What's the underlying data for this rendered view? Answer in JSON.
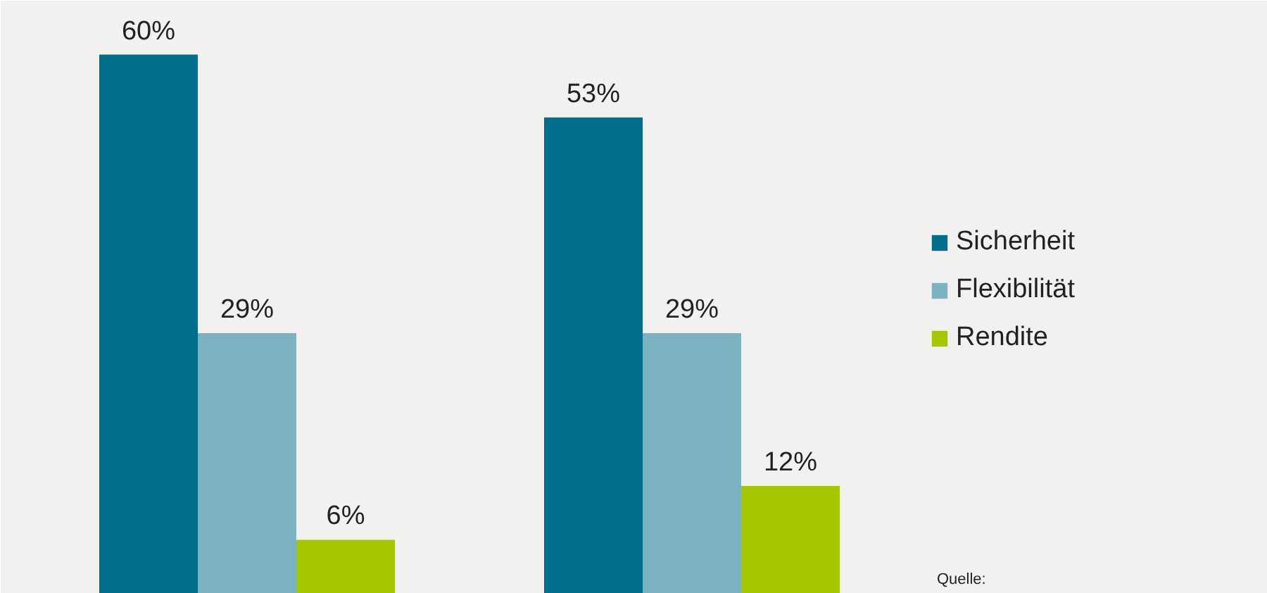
{
  "chart_data": {
    "type": "bar",
    "categories": [
      null,
      null
    ],
    "series": [
      {
        "name": "Sicherheit",
        "color": "#006d8a",
        "values": [
          60,
          53
        ],
        "value_labels": [
          "60%",
          "53%"
        ]
      },
      {
        "name": "Flexibilität",
        "color": "#7bb3c3",
        "values": [
          29,
          29
        ],
        "value_labels": [
          "29%",
          "29%"
        ]
      },
      {
        "name": "Rendite",
        "color": "#a6c700",
        "values": [
          6,
          12
        ],
        "value_labels": [
          "6%",
          "12%"
        ]
      }
    ],
    "legend": "right",
    "grid": false,
    "annotations": [
      "Quelle:"
    ]
  }
}
